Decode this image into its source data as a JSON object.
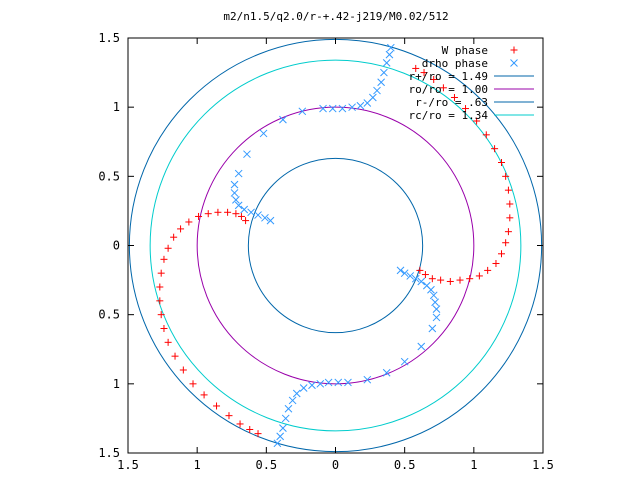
{
  "chart_data": {
    "type": "scatter",
    "title": "m2/n1.5/q2.0/r-+.42-j219/M0.02/512",
    "xlabel": "",
    "ylabel": "",
    "xlim": [
      -1.5,
      1.5
    ],
    "ylim": [
      -1.5,
      1.5
    ],
    "x_ticks": [
      {
        "value": -1.5,
        "label": "1.5"
      },
      {
        "value": -1.0,
        "label": "1"
      },
      {
        "value": -0.5,
        "label": "0.5"
      },
      {
        "value": 0.0,
        "label": "0"
      },
      {
        "value": 0.5,
        "label": "0.5"
      },
      {
        "value": 1.0,
        "label": "1"
      },
      {
        "value": 1.5,
        "label": "1.5"
      }
    ],
    "y_ticks": [
      {
        "value": 1.5,
        "label": "1.5"
      },
      {
        "value": 1.0,
        "label": "1"
      },
      {
        "value": 0.5,
        "label": "0.5"
      },
      {
        "value": 0.0,
        "label": "0"
      },
      {
        "value": -0.5,
        "label": "0.5"
      },
      {
        "value": -1.0,
        "label": "1"
      },
      {
        "value": -1.5,
        "label": "1.5"
      }
    ],
    "grid": false,
    "legend_position": "top-right",
    "legend": [
      {
        "label": "W phase",
        "kind": "plus",
        "color": "#ff0000"
      },
      {
        "label": "drho phase",
        "kind": "cross",
        "color": "#3399ff"
      },
      {
        "label": "r+/ro = 1.49",
        "kind": "line",
        "color": "#0066aa"
      },
      {
        "label": "ro/ro = 1.00",
        "kind": "line",
        "color": "#9900aa"
      },
      {
        "label": "r-/ro = .63",
        "kind": "line",
        "color": "#0066aa"
      },
      {
        "label": "rc/ro = 1.34",
        "kind": "line",
        "color": "#00cccc"
      }
    ],
    "circles": [
      {
        "name": "r+/ro",
        "r": 1.49
      },
      {
        "name": "ro/ro",
        "r": 1.0
      },
      {
        "name": "r-/ro",
        "r": 0.63
      },
      {
        "name": "rc/ro",
        "r": 1.34
      }
    ],
    "series": [
      {
        "name": "W phase",
        "marker": "plus",
        "color": "#ff0000",
        "points": [
          [
            -0.65,
            0.18
          ],
          [
            -0.68,
            0.21
          ],
          [
            -0.72,
            0.23
          ],
          [
            -0.78,
            0.24
          ],
          [
            -0.85,
            0.24
          ],
          [
            -0.92,
            0.23
          ],
          [
            -0.99,
            0.21
          ],
          [
            -1.06,
            0.17
          ],
          [
            -1.12,
            0.12
          ],
          [
            -1.17,
            0.06
          ],
          [
            -1.21,
            -0.02
          ],
          [
            -1.24,
            -0.1
          ],
          [
            -1.26,
            -0.2
          ],
          [
            -1.27,
            -0.3
          ],
          [
            -1.27,
            -0.4
          ],
          [
            -1.26,
            -0.5
          ],
          [
            -1.24,
            -0.6
          ],
          [
            -1.21,
            -0.7
          ],
          [
            -1.16,
            -0.8
          ],
          [
            -1.1,
            -0.9
          ],
          [
            -1.03,
            -1.0
          ],
          [
            -0.95,
            -1.08
          ],
          [
            -0.86,
            -1.16
          ],
          [
            -0.77,
            -1.23
          ],
          [
            -0.69,
            -1.29
          ],
          [
            -0.62,
            -1.33
          ],
          [
            -0.56,
            -1.36
          ],
          [
            0.61,
            -0.18
          ],
          [
            0.65,
            -0.21
          ],
          [
            0.7,
            -0.24
          ],
          [
            0.76,
            -0.25
          ],
          [
            0.83,
            -0.26
          ],
          [
            0.9,
            -0.25
          ],
          [
            0.97,
            -0.24
          ],
          [
            1.04,
            -0.22
          ],
          [
            1.1,
            -0.18
          ],
          [
            1.16,
            -0.13
          ],
          [
            1.2,
            -0.06
          ],
          [
            1.23,
            0.02
          ],
          [
            1.25,
            0.1
          ],
          [
            1.26,
            0.2
          ],
          [
            1.26,
            0.3
          ],
          [
            1.25,
            0.4
          ],
          [
            1.23,
            0.5
          ],
          [
            1.2,
            0.6
          ],
          [
            1.15,
            0.7
          ],
          [
            1.09,
            0.8
          ],
          [
            1.02,
            0.9
          ],
          [
            0.94,
            0.99
          ],
          [
            0.86,
            1.07
          ],
          [
            0.78,
            1.14
          ],
          [
            0.71,
            1.2
          ],
          [
            0.64,
            1.25
          ],
          [
            0.58,
            1.28
          ]
        ]
      },
      {
        "name": "drho phase",
        "marker": "cross",
        "color": "#3399ff",
        "points": [
          [
            -0.02,
            0.99
          ],
          [
            0.05,
            0.99
          ],
          [
            0.12,
            1.0
          ],
          [
            0.18,
            1.01
          ],
          [
            0.23,
            1.03
          ],
          [
            0.27,
            1.07
          ],
          [
            0.3,
            1.12
          ],
          [
            0.33,
            1.18
          ],
          [
            0.35,
            1.25
          ],
          [
            0.37,
            1.32
          ],
          [
            0.39,
            1.38
          ],
          [
            0.4,
            1.43
          ],
          [
            -0.09,
            0.99
          ],
          [
            -0.24,
            0.97
          ],
          [
            -0.38,
            0.91
          ],
          [
            -0.52,
            0.81
          ],
          [
            -0.64,
            0.66
          ],
          [
            -0.7,
            0.52
          ],
          [
            -0.73,
            0.44
          ],
          [
            -0.73,
            0.38
          ],
          [
            -0.72,
            0.33
          ],
          [
            -0.7,
            0.29
          ],
          [
            -0.66,
            0.26
          ],
          [
            -0.61,
            0.24
          ],
          [
            -0.56,
            0.22
          ],
          [
            -0.51,
            0.2
          ],
          [
            -0.47,
            0.18
          ],
          [
            0.02,
            -0.99
          ],
          [
            -0.05,
            -0.99
          ],
          [
            -0.11,
            -1.0
          ],
          [
            -0.17,
            -1.01
          ],
          [
            -0.23,
            -1.03
          ],
          [
            -0.28,
            -1.07
          ],
          [
            -0.31,
            -1.12
          ],
          [
            -0.34,
            -1.18
          ],
          [
            -0.36,
            -1.25
          ],
          [
            -0.38,
            -1.32
          ],
          [
            -0.4,
            -1.38
          ],
          [
            -0.42,
            -1.43
          ],
          [
            0.09,
            -0.99
          ],
          [
            0.23,
            -0.97
          ],
          [
            0.37,
            -0.92
          ],
          [
            0.5,
            -0.84
          ],
          [
            0.62,
            -0.73
          ],
          [
            0.7,
            -0.6
          ],
          [
            0.73,
            -0.52
          ],
          [
            0.73,
            -0.46
          ],
          [
            0.72,
            -0.41
          ],
          [
            0.71,
            -0.36
          ],
          [
            0.69,
            -0.32
          ],
          [
            0.66,
            -0.29
          ],
          [
            0.62,
            -0.26
          ],
          [
            0.58,
            -0.24
          ],
          [
            0.54,
            -0.22
          ],
          [
            0.5,
            -0.2
          ],
          [
            0.47,
            -0.18
          ]
        ]
      }
    ]
  }
}
